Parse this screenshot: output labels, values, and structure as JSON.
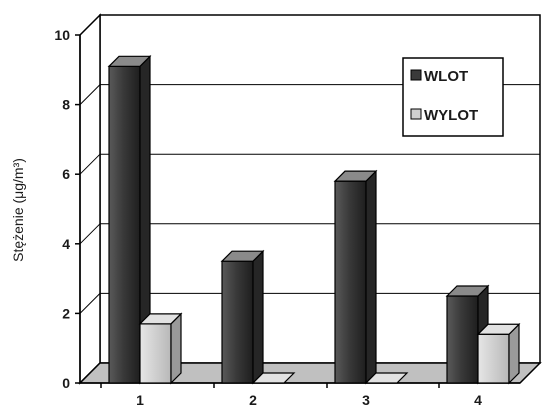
{
  "chart_data": {
    "type": "bar",
    "style": "3d",
    "categories": [
      "1",
      "2",
      "3",
      "4"
    ],
    "series": [
      {
        "name": "WLOT",
        "values": [
          9.1,
          3.5,
          5.8,
          2.5
        ],
        "color": "#333333"
      },
      {
        "name": "WYLOT",
        "values": [
          1.7,
          0.0,
          0.0,
          1.4
        ],
        "color": "#c8c8c8"
      }
    ],
    "ylabel": "Stężenie (μg/m³)",
    "ylim": [
      0,
      10
    ],
    "yticks": [
      "0",
      "2",
      "4",
      "6",
      "8",
      "10"
    ],
    "grid": true,
    "legend_position": "top-right"
  }
}
